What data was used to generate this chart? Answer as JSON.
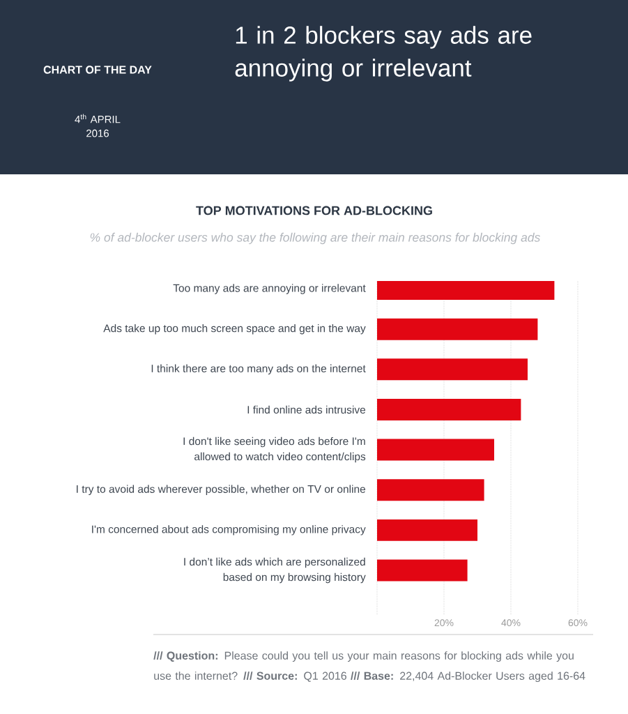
{
  "chart_data": {
    "type": "bar",
    "orientation": "horizontal",
    "title": "1 in 2 blockers say ads are annoying or irrelevant",
    "subtitle": "TOP MOTIVATIONS FOR AD-BLOCKING",
    "categories": [
      "Too many ads are annoying or irrelevant",
      "Ads take up too much screen space and get in the way",
      "I think there are too many ads on the internet",
      "I find online ads intrusive",
      "I don't like seeing video ads before I'm allowed to watch video content/clips",
      "I try to avoid ads wherever possible, whether on TV or online",
      "I'm concerned about ads compromising my online privacy",
      "I don’t like ads which are personalized based on my browsing history"
    ],
    "values": [
      53,
      48,
      45,
      43,
      35,
      32,
      30,
      27
    ],
    "color": "#e20613",
    "xlim": [
      0,
      60
    ],
    "xticks": [
      {
        "value": 0,
        "label": null
      },
      {
        "value": 20,
        "label": "20%"
      },
      {
        "value": 40,
        "label": "40%"
      },
      {
        "value": 60,
        "label": "60%"
      }
    ],
    "grid": "x",
    "annotations": [
      "% of ad-blocker users who say the following are their main reasons for blocking ads",
      "CHART OF THE DAY",
      "4$^{th}$ APRIL 2016",
      "**/// Question:** Please could you tell us your main reasons for blocking ads while you use the internet? **/// Source:** Q1 2016 **/// Base:** 22,404 Ad-Blocker Users aged 16-64"
    ]
  }
}
